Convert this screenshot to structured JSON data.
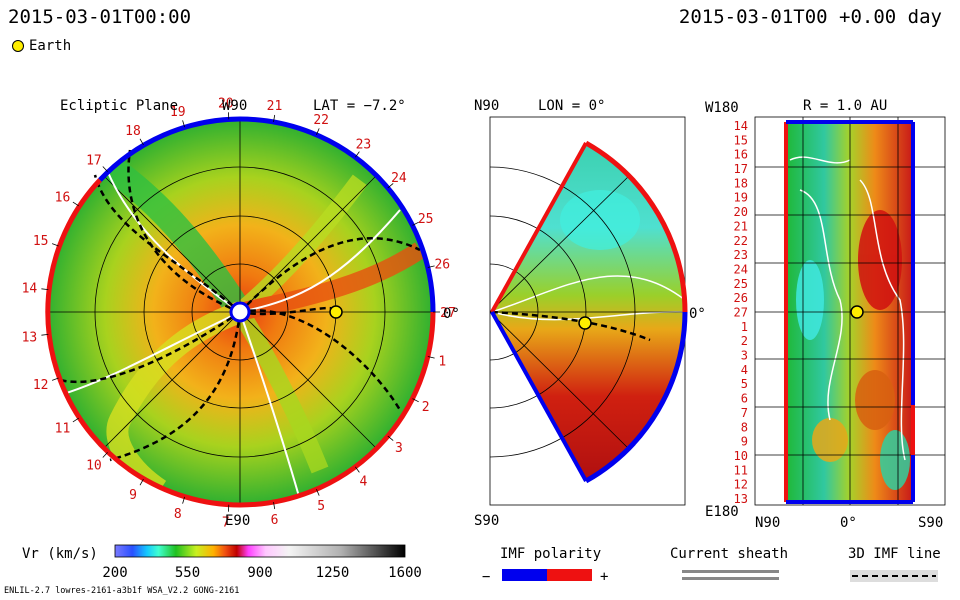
{
  "header": {
    "left_time": "2015-03-01T00:00",
    "right_time": "2015-03-01T00 +0.00 day"
  },
  "legend": {
    "earth_label": "Earth"
  },
  "panels": {
    "ecliptic": {
      "title": "Ecliptic Plane",
      "top_label": "W90",
      "bottom_label": "E90",
      "right_label": "0°",
      "lat_label": "LAT = −7.2°"
    },
    "meridional": {
      "top_label": "N90",
      "lon_label": "LON = 0°",
      "bottom_label": "S90",
      "right_label": "0°"
    },
    "synoptic": {
      "top_left": "W180",
      "title": "R = 1.0 AU",
      "bottom_left": "E180",
      "x_left": "N90",
      "x_mid": "0°",
      "x_right": "S90"
    }
  },
  "colorbar": {
    "label": "Vr (km/s)",
    "ticks": [
      "200",
      "550",
      "900",
      "1250",
      "1600"
    ]
  },
  "imf_polarity": {
    "title": "IMF polarity",
    "minus": "−",
    "plus": "+"
  },
  "current_sheath": {
    "title": "Current sheath"
  },
  "imf_line": {
    "title": "3D IMF line"
  },
  "footer": {
    "left": "ENLIL-2.7 lowres-2161-a3b1f WSA_V2.2 GONG-2161"
  },
  "colors": {
    "red": "#ee1111",
    "blue": "#0000ee",
    "earth": "#ffee00"
  },
  "chart_data": [
    {
      "type": "heatmap",
      "title": "Ecliptic Plane",
      "subtitle": "LAT = −7.2°",
      "variable": "Vr (km/s)",
      "carrington_labels": [
        "19",
        "20",
        "21",
        "22",
        "23",
        "24",
        "25",
        "26",
        "27",
        "1",
        "2",
        "3",
        "4",
        "5",
        "6",
        "7",
        "8",
        "9",
        "10",
        "11",
        "12",
        "13",
        "14",
        "15",
        "16",
        "17",
        "18"
      ],
      "range": [
        200,
        1600
      ]
    },
    {
      "type": "heatmap",
      "title": "LON = 0°",
      "variable": "Vr (km/s)",
      "range": [
        200,
        1600
      ]
    },
    {
      "type": "heatmap",
      "title": "R = 1.0 AU",
      "variable": "Vr (km/s)",
      "y_ticks": [
        "14",
        "15",
        "16",
        "17",
        "18",
        "19",
        "20",
        "21",
        "22",
        "23",
        "24",
        "25",
        "26",
        "27",
        "1",
        "2",
        "3",
        "4",
        "5",
        "6",
        "7",
        "8",
        "9",
        "10",
        "11",
        "12",
        "13"
      ],
      "x_ticks": [
        "N90",
        "0°",
        "S90"
      ],
      "range": [
        200,
        1600
      ]
    }
  ]
}
